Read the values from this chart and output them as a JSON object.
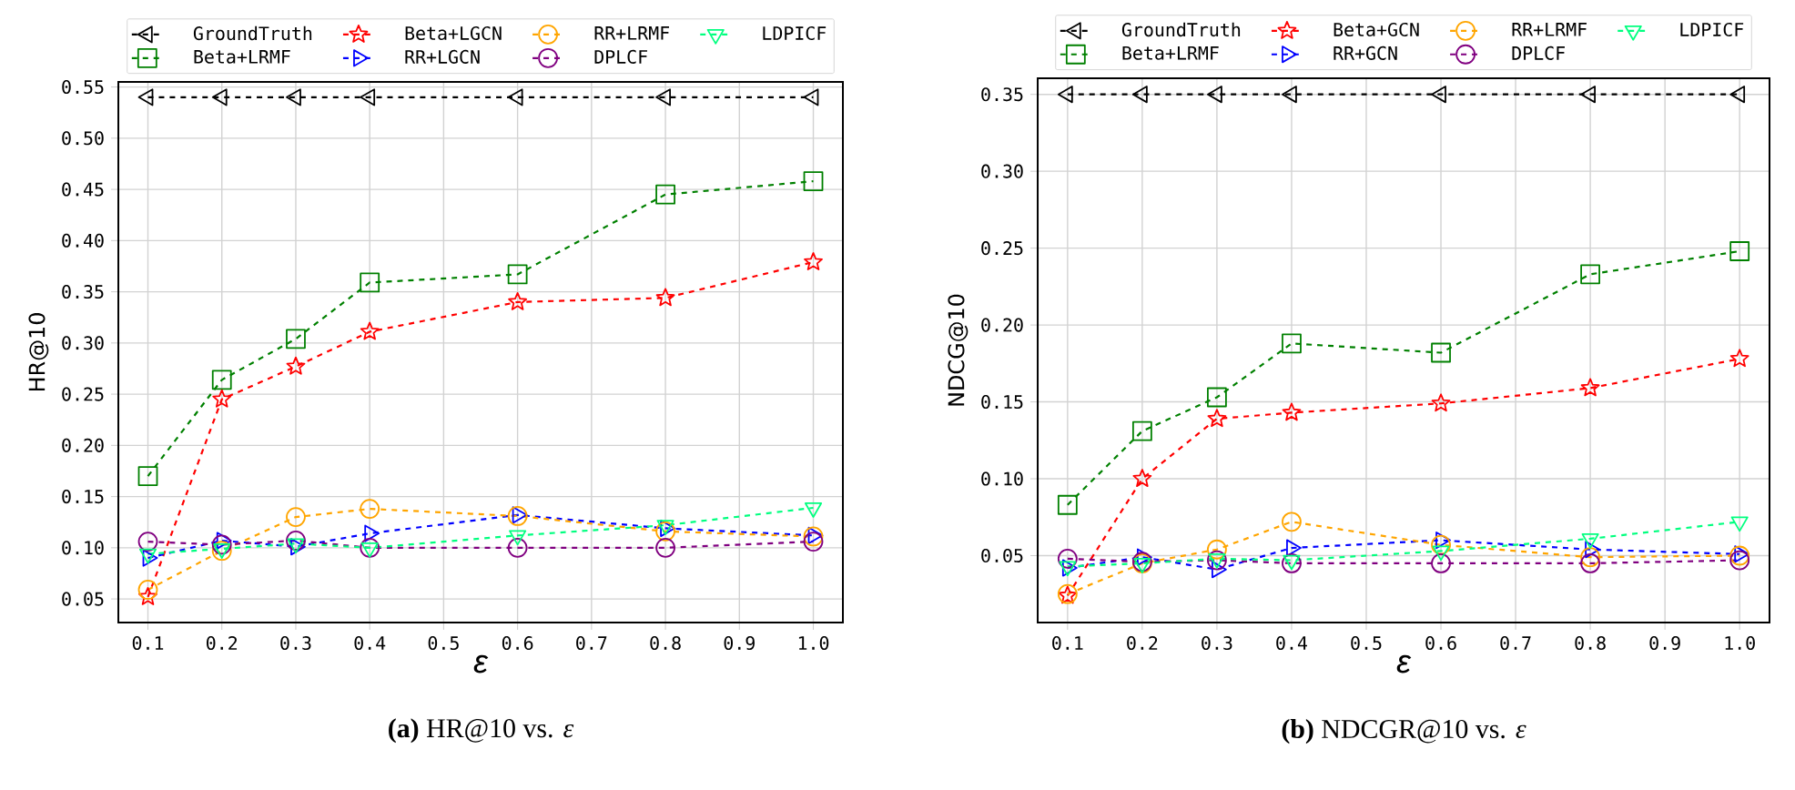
{
  "chart_data": [
    {
      "type": "line",
      "xlabel": "ε",
      "ylabel": "HR@10",
      "annotations": [
        "**(a)** HR@10 vs. *ε*"
      ],
      "x": [
        0.1,
        0.2,
        0.3,
        0.4,
        0.6,
        0.8,
        1.0
      ],
      "xlim": [
        0.06,
        1.04
      ],
      "ylim": [
        0.027,
        0.555
      ],
      "xticks": [
        0.1,
        0.2,
        0.3,
        0.4,
        0.5,
        0.6,
        0.7,
        0.8,
        0.9,
        {
          "value": 1.0,
          "label": "1.0"
        }
      ],
      "yticks": [
        0.05,
        {
          "value": 0.1,
          "label": "0.10"
        },
        0.15,
        {
          "value": 0.2,
          "label": "0.20"
        },
        0.25,
        {
          "value": 0.3,
          "label": "0.30"
        },
        0.35,
        {
          "value": 0.4,
          "label": "0.40"
        },
        0.45,
        {
          "value": 0.5,
          "label": "0.50"
        },
        0.55
      ],
      "grid": true,
      "legend": "top",
      "line_style": "dashed",
      "series": [
        {
          "name": "GroundTruth",
          "color": "#000000",
          "marker": "triangle-left",
          "values": [
            0.54,
            0.54,
            0.54,
            0.54,
            0.54,
            0.54,
            0.54
          ]
        },
        {
          "name": "Beta+LRMF",
          "color": "#008000",
          "marker": "square",
          "values": [
            0.17,
            0.264,
            0.304,
            0.359,
            0.367,
            0.445,
            0.458
          ]
        },
        {
          "name": "Beta+LGCN",
          "color": "#ff0000",
          "marker": "star",
          "values": [
            0.052,
            0.245,
            0.277,
            0.311,
            0.34,
            0.344,
            0.379
          ]
        },
        {
          "name": "RR+LGCN",
          "color": "#0000ff",
          "marker": "triangle-right",
          "values": [
            0.09,
            0.107,
            0.101,
            0.114,
            0.132,
            0.119,
            0.112
          ]
        },
        {
          "name": "RR+LRMF",
          "color": "#ffa500",
          "marker": "circle",
          "values": [
            0.059,
            0.097,
            0.13,
            0.138,
            0.131,
            0.116,
            0.111
          ]
        },
        {
          "name": "DPLCF",
          "color": "#800080",
          "marker": "circle",
          "values": [
            0.106,
            0.103,
            0.107,
            0.1,
            0.1,
            0.1,
            0.106
          ]
        },
        {
          "name": "LDPICF",
          "color": "#00ff7f",
          "marker": "triangle-down",
          "values": [
            0.094,
            0.099,
            0.104,
            0.1,
            0.112,
            0.122,
            0.139
          ]
        }
      ]
    },
    {
      "type": "line",
      "xlabel": "ε",
      "ylabel": "NDCG@10",
      "annotations": [
        "**(b)** NDCGR@10 vs. *ε*"
      ],
      "x": [
        0.1,
        0.2,
        0.3,
        0.4,
        0.6,
        0.8,
        1.0
      ],
      "xlim": [
        0.06,
        1.04
      ],
      "ylim": [
        0.0065,
        0.3605
      ],
      "xticks": [
        0.1,
        0.2,
        0.3,
        0.4,
        0.5,
        0.6,
        0.7,
        0.8,
        0.9,
        {
          "value": 1.0,
          "label": "1.0"
        }
      ],
      "yticks": [
        0.05,
        {
          "value": 0.1,
          "label": "0.10"
        },
        0.15,
        {
          "value": 0.2,
          "label": "0.20"
        },
        0.25,
        {
          "value": 0.3,
          "label": "0.30"
        },
        0.35
      ],
      "grid": true,
      "legend": "top",
      "line_style": "dashed",
      "series": [
        {
          "name": "GroundTruth",
          "color": "#000000",
          "marker": "triangle-left",
          "values": [
            0.35,
            0.35,
            0.35,
            0.35,
            0.35,
            0.35,
            0.35
          ]
        },
        {
          "name": "Beta+LRMF",
          "color": "#008000",
          "marker": "square",
          "values": [
            0.083,
            0.131,
            0.153,
            0.188,
            0.182,
            0.233,
            0.248
          ]
        },
        {
          "name": "Beta+GCN",
          "color": "#ff0000",
          "marker": "star",
          "values": [
            0.024,
            0.1,
            0.139,
            0.143,
            0.149,
            0.159,
            0.178
          ]
        },
        {
          "name": "RR+GCN",
          "color": "#0000ff",
          "marker": "triangle-right",
          "values": [
            0.042,
            0.049,
            0.041,
            0.055,
            0.06,
            0.054,
            0.051
          ]
        },
        {
          "name": "RR+LRMF",
          "color": "#ffa500",
          "marker": "circle",
          "values": [
            0.025,
            0.045,
            0.054,
            0.072,
            0.057,
            0.049,
            0.05
          ]
        },
        {
          "name": "DPLCF",
          "color": "#800080",
          "marker": "circle",
          "values": [
            0.048,
            0.046,
            0.047,
            0.045,
            0.045,
            0.045,
            0.047
          ]
        },
        {
          "name": "LDPICF",
          "color": "#00ff7f",
          "marker": "triangle-down",
          "values": [
            0.043,
            0.045,
            0.048,
            0.047,
            0.053,
            0.061,
            0.072
          ]
        }
      ]
    }
  ]
}
